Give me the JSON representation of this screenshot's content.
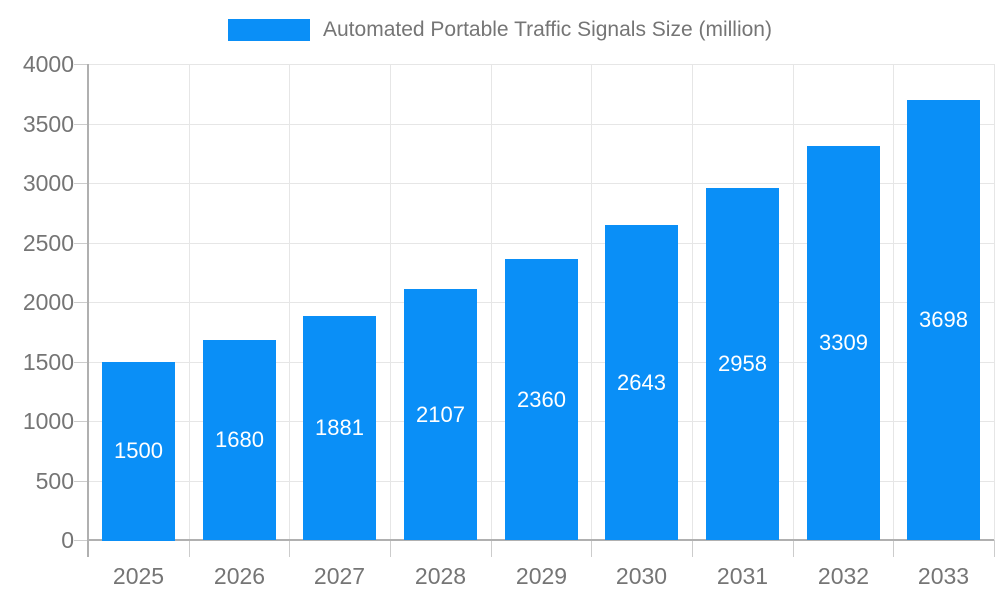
{
  "chart_data": {
    "type": "bar",
    "title": "",
    "categories": [
      "2025",
      "2026",
      "2027",
      "2028",
      "2029",
      "2030",
      "2031",
      "2032",
      "2033"
    ],
    "series": [
      {
        "name": "Automated Portable Traffic Signals Size (million)",
        "values": [
          1500,
          1680,
          1881,
          2107,
          2360,
          2643,
          2958,
          3309,
          3698
        ]
      }
    ],
    "xlabel": "",
    "ylabel": "",
    "ylim": [
      0,
      4000
    ],
    "yticks": [
      0,
      500,
      1000,
      1500,
      2000,
      2500,
      3000,
      3500,
      4000
    ],
    "grid": true,
    "legend_position": "top",
    "value_labels_inside_bars": true,
    "colors": {
      "bar": "#0a8ff7",
      "value_label": "#ffffff",
      "axis_text": "#757575",
      "gridline": "#e6e6e6",
      "axis_line": "#b0b0b0",
      "tick": "#cccccc",
      "background": "#ffffff"
    }
  }
}
